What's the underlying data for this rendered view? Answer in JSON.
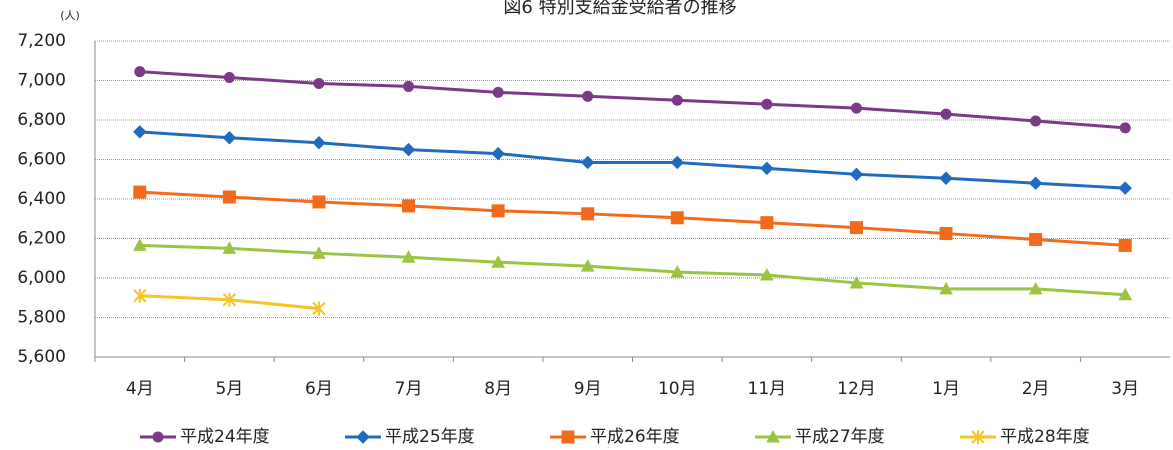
{
  "chart_data": {
    "type": "line",
    "title": "図6 特別支給金受給者の推移",
    "y_unit": "(人)",
    "categories": [
      "4月",
      "5月",
      "6月",
      "7月",
      "8月",
      "9月",
      "10月",
      "11月",
      "12月",
      "1月",
      "2月",
      "3月"
    ],
    "series": [
      {
        "name": "平成24年度",
        "color": "#7b3a86",
        "marker": "circle",
        "values": [
          7045,
          7015,
          6985,
          6970,
          6940,
          6920,
          6900,
          6880,
          6860,
          6830,
          6795,
          6760
        ]
      },
      {
        "name": "平成25年度",
        "color": "#1f6bc0",
        "marker": "diamond",
        "values": [
          6740,
          6710,
          6685,
          6650,
          6630,
          6585,
          6585,
          6555,
          6525,
          6505,
          6480,
          6455
        ]
      },
      {
        "name": "平成26年度",
        "color": "#f26a1b",
        "marker": "square",
        "values": [
          6435,
          6410,
          6385,
          6365,
          6340,
          6325,
          6305,
          6280,
          6255,
          6225,
          6195,
          6165
        ]
      },
      {
        "name": "平成27年度",
        "color": "#9bc442",
        "marker": "triangle",
        "values": [
          6165,
          6150,
          6125,
          6105,
          6080,
          6060,
          6030,
          6015,
          5975,
          5945,
          5945,
          5915
        ]
      },
      {
        "name": "平成28年度",
        "color": "#f7c325",
        "marker": "star",
        "values": [
          5910,
          5890,
          5845,
          null,
          null,
          null,
          null,
          null,
          null,
          null,
          null,
          null
        ]
      }
    ],
    "ylim": [
      5600,
      7200
    ],
    "yticks": [
      {
        "value": 5600,
        "label": "5,600"
      },
      {
        "value": 5800,
        "label": "5,800"
      },
      {
        "value": 6000,
        "label": "6,000"
      },
      {
        "value": 6200,
        "label": "6,200"
      },
      {
        "value": 6400,
        "label": "6,400"
      },
      {
        "value": 6600,
        "label": "6,600"
      },
      {
        "value": 6800,
        "label": "6,800"
      },
      {
        "value": 7000,
        "label": "7,000"
      },
      {
        "value": 7200,
        "label": "7,200"
      }
    ],
    "grid": true,
    "legend": "bottom"
  }
}
